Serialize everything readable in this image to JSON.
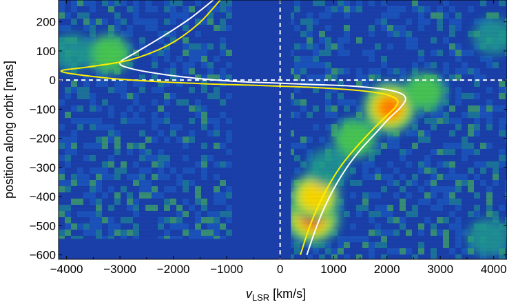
{
  "chart_data": {
    "type": "heatmap",
    "title": "",
    "xlabel": {
      "symbol": "v",
      "subscript": "LSR",
      "unit": "[km/s]"
    },
    "ylabel": "position along orbit [mas]",
    "xlim": [
      -4150,
      4250
    ],
    "ylim": [
      -615,
      275
    ],
    "xticks": [
      -4000,
      -3000,
      -2000,
      -1000,
      0,
      1000,
      2000,
      3000,
      4000
    ],
    "yticks": [
      200,
      100,
      0,
      -100,
      -200,
      -300,
      -400,
      -500,
      -600
    ],
    "xtick_labels": [
      "−4000",
      "−3000",
      "−2000",
      "−1000",
      "0",
      "1000",
      "2000",
      "3000",
      "4000"
    ],
    "ytick_labels": [
      "200",
      "100",
      "0",
      "−100",
      "−200",
      "−300",
      "−400",
      "−500",
      "−600"
    ],
    "colormap": [
      "#1536a8",
      "#1d63c9",
      "#1f9a8e",
      "#4fcc4a",
      "#c8f020",
      "#ffd000",
      "#ff6a00",
      "#e00a00"
    ],
    "background_color": "#1a3fa8",
    "masked_regions": [
      {
        "x": [
          -4150,
          -900
        ],
        "y": [
          -615,
          -545
        ]
      },
      {
        "x": [
          -900,
          200
        ],
        "y": [
          -615,
          275
        ]
      }
    ],
    "emission_features": [
      {
        "x": 600,
        "y": -470,
        "peak": 1.0
      },
      {
        "x": 650,
        "y": -400,
        "peak": 0.75
      },
      {
        "x": 900,
        "y": -300,
        "peak": 0.35
      },
      {
        "x": 1400,
        "y": -200,
        "peak": 0.45
      },
      {
        "x": 2050,
        "y": -95,
        "peak": 0.9
      },
      {
        "x": 2700,
        "y": -40,
        "peak": 0.4
      },
      {
        "x": -3200,
        "y": 90,
        "peak": 0.45
      },
      {
        "x": -3900,
        "y": 95,
        "peak": 0.35
      },
      {
        "x": 3900,
        "y": -540,
        "peak": 0.35
      },
      {
        "x": 4000,
        "y": 150,
        "peak": 0.3
      }
    ],
    "reference_lines": [
      {
        "orientation": "vertical",
        "value": 0,
        "style": "dashed",
        "color": "#ffffff"
      },
      {
        "orientation": "horizontal",
        "value": 0,
        "style": "dashed",
        "color": "#ffffff"
      }
    ],
    "series": [
      {
        "color": "#ffffff",
        "x": [
          500,
          650,
          800,
          1000,
          1250,
          1500,
          1800,
          2050,
          2250,
          2350,
          2250,
          1900,
          1300,
          600,
          -100,
          -800,
          -1500,
          -2200,
          -2800,
          -3000,
          -2700,
          -2200,
          -1700,
          -1250
        ],
        "y": [
          -600,
          -520,
          -450,
          -375,
          -300,
          -240,
          -180,
          -130,
          -95,
          -65,
          -45,
          -30,
          -20,
          -15,
          -10,
          -5,
          5,
          20,
          40,
          60,
          95,
          150,
          210,
          275
        ]
      },
      {
        "color": "#ffee00",
        "x": [
          380,
          520,
          670,
          870,
          1120,
          1380,
          1680,
          1950,
          2150,
          2200,
          2000,
          1600,
          900,
          200,
          -600,
          -1500,
          -2400,
          -3300,
          -4100,
          -3600,
          -2800,
          -2100,
          -1550,
          -1120
        ],
        "y": [
          -600,
          -520,
          -450,
          -375,
          -300,
          -240,
          -180,
          -130,
          -95,
          -70,
          -50,
          -38,
          -28,
          -22,
          -17,
          -12,
          -4,
          8,
          30,
          45,
          70,
          120,
          190,
          275
        ]
      }
    ]
  }
}
